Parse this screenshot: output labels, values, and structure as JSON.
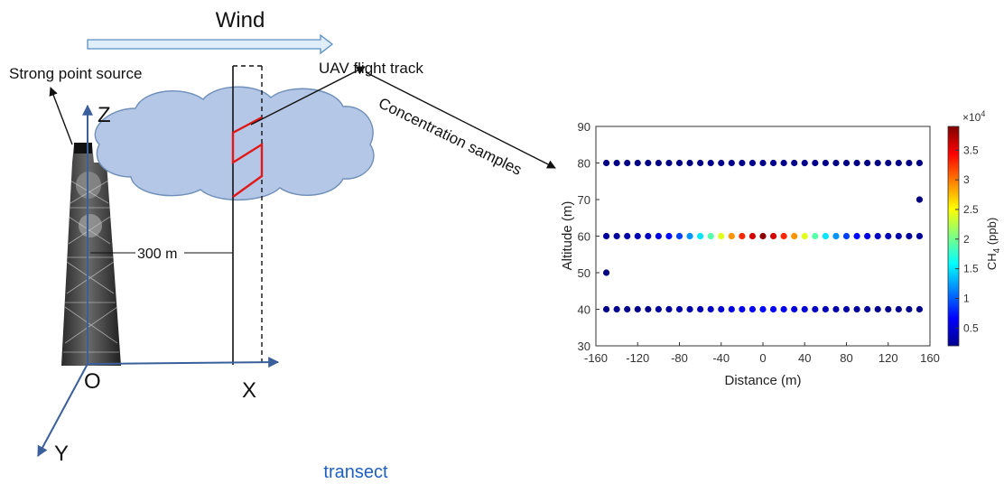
{
  "labels": {
    "wind": "Wind",
    "source": "Strong point source",
    "track": "UAV flight track",
    "samples": "Concentration samples",
    "distance_label": "300 m",
    "axis_z": "Z",
    "axis_x": "X",
    "axis_y": "Y",
    "origin": "O",
    "transect": "transect"
  },
  "colors": {
    "wind_arrow_fill": "#dfeefa",
    "wind_arrow_stroke": "#5b8fc2",
    "plume_fill": "#b4c7e7",
    "plume_stroke": "#6f8fb8",
    "axis_blue": "#3a5f9a",
    "track_red": "#e01818",
    "transect_text": "#1f5fbf"
  },
  "chart_data": {
    "type": "scatter",
    "xlabel": "Distance (m)",
    "ylabel": "Altitude (m)",
    "xlim": [
      -160,
      160
    ],
    "ylim": [
      30,
      90
    ],
    "xticks": [
      "-160",
      "-120",
      "-80",
      "-40",
      "0",
      "40",
      "80",
      "120",
      "160"
    ],
    "yticks": [
      "30",
      "40",
      "50",
      "60",
      "70",
      "80",
      "90"
    ],
    "colorbar": {
      "label_base": "CH",
      "label_sub": "4",
      "label_unit": " (ppb)",
      "exponent_base": "×10",
      "exponent_power": "4",
      "range": [
        0.2,
        3.9
      ],
      "ticks": [
        "0.5",
        "1",
        "1.5",
        "2",
        "2.5",
        "3",
        "3.5"
      ]
    },
    "series": [
      {
        "altitude": 80,
        "x": [
          -150,
          -140,
          -130,
          -120,
          -110,
          -100,
          -90,
          -80,
          -70,
          -60,
          -50,
          -40,
          -30,
          -20,
          -10,
          0,
          10,
          20,
          30,
          40,
          50,
          60,
          70,
          80,
          90,
          100,
          110,
          120,
          130,
          140,
          150
        ],
        "ch4": [
          0.22,
          0.22,
          0.22,
          0.22,
          0.22,
          0.22,
          0.22,
          0.22,
          0.22,
          0.22,
          0.25,
          0.25,
          0.25,
          0.25,
          0.25,
          0.25,
          0.25,
          0.25,
          0.25,
          0.25,
          0.25,
          0.25,
          0.22,
          0.22,
          0.22,
          0.22,
          0.22,
          0.22,
          0.22,
          0.22,
          0.22
        ]
      },
      {
        "altitude": 60,
        "x": [
          -150,
          -140,
          -130,
          -120,
          -110,
          -100,
          -90,
          -80,
          -70,
          -60,
          -50,
          -40,
          -30,
          -20,
          -10,
          0,
          10,
          20,
          30,
          40,
          50,
          60,
          70,
          80,
          90,
          100,
          110,
          120,
          130,
          140,
          150
        ],
        "ch4": [
          0.3,
          0.3,
          0.35,
          0.4,
          0.45,
          0.55,
          0.7,
          0.9,
          1.2,
          1.5,
          1.9,
          2.4,
          2.9,
          3.3,
          3.6,
          3.85,
          3.6,
          3.3,
          2.9,
          2.4,
          1.9,
          1.5,
          1.2,
          0.9,
          0.7,
          0.55,
          0.45,
          0.4,
          0.35,
          0.3,
          0.3
        ]
      },
      {
        "altitude": 40,
        "x": [
          -150,
          -140,
          -130,
          -120,
          -110,
          -100,
          -90,
          -80,
          -70,
          -60,
          -50,
          -40,
          -30,
          -20,
          -10,
          0,
          10,
          20,
          30,
          40,
          50,
          60,
          70,
          80,
          90,
          100,
          110,
          120,
          130,
          140,
          150
        ],
        "ch4": [
          0.25,
          0.25,
          0.25,
          0.25,
          0.25,
          0.3,
          0.3,
          0.35,
          0.35,
          0.4,
          0.45,
          0.5,
          0.55,
          0.6,
          0.65,
          0.7,
          0.65,
          0.6,
          0.55,
          0.5,
          0.45,
          0.4,
          0.35,
          0.35,
          0.3,
          0.3,
          0.25,
          0.25,
          0.25,
          0.25,
          0.25
        ]
      }
    ],
    "extra_points": [
      {
        "x": -150,
        "altitude": 50,
        "ch4": 0.2
      },
      {
        "x": 150,
        "altitude": 70,
        "ch4": 0.2
      }
    ]
  }
}
